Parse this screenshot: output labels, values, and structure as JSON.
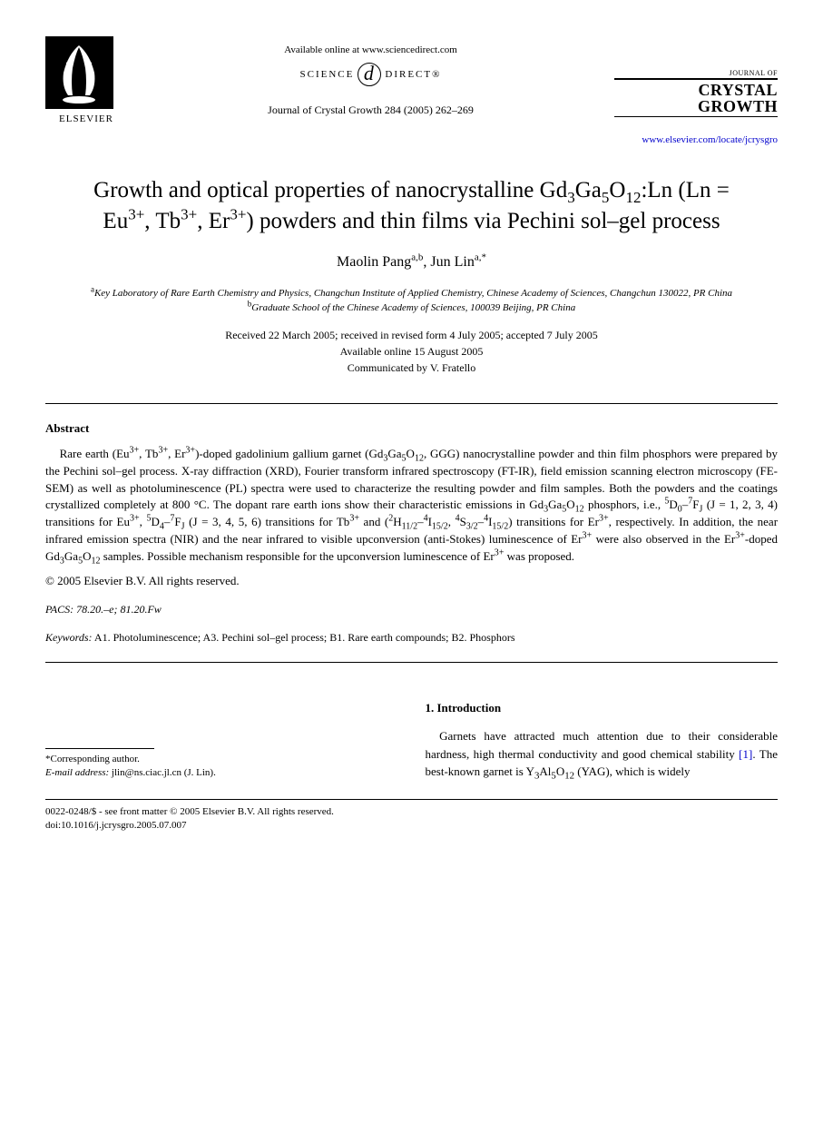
{
  "header": {
    "elsevier": "ELSEVIER",
    "available_online": "Available online at www.sciencedirect.com",
    "science": "SCIENCE",
    "direct": "DIRECT®",
    "journal_ref": "Journal of Crystal Growth 284 (2005) 262–269",
    "journal_of": "JOURNAL OF",
    "crystal": "CRYSTAL",
    "growth": "GROWTH",
    "url": "www.elsevier.com/locate/jcrysgro"
  },
  "title_html": "Growth and optical properties of nanocrystalline Gd<sub>3</sub>Ga<sub>5</sub>O<sub>12</sub>:Ln (Ln = Eu<sup>3+</sup>, Tb<sup>3+</sup>, Er<sup>3+</sup>) powders and thin films via Pechini sol–gel process",
  "authors_html": "Maolin Pang<sup>a,b</sup>, Jun Lin<sup>a,*</sup>",
  "affiliations_html": "<sup>a</sup>Key Laboratory of Rare Earth Chemistry and Physics, Changchun Institute of Applied Chemistry, Chinese Academy of Sciences, Changchun 130022, PR China<br><sup>b</sup>Graduate School of the Chinese Academy of Sciences, 100039 Beijing, PR China",
  "dates": {
    "line1": "Received 22 March 2005; received in revised form 4 July 2005; accepted 7 July 2005",
    "line2": "Available online 15 August 2005",
    "line3": "Communicated by V. Fratello"
  },
  "abstract": {
    "heading": "Abstract",
    "body_html": "Rare earth (Eu<sup>3+</sup>, Tb<sup>3+</sup>, Er<sup>3+</sup>)-doped gadolinium gallium garnet (Gd<sub>3</sub>Ga<sub>5</sub>O<sub>12</sub>, GGG) nanocrystalline powder and thin film phosphors were prepared by the Pechini sol–gel process. X-ray diffraction (XRD), Fourier transform infrared spectroscopy (FT-IR), field emission scanning electron microscopy (FE-SEM) as well as photoluminescence (PL) spectra were used to characterize the resulting powder and film samples. Both the powders and the coatings crystallized completely at 800 °C. The dopant rare earth ions show their characteristic emissions in Gd<sub>3</sub>Ga<sub>5</sub>O<sub>12</sub> phosphors, i.e., <sup>5</sup>D<sub>0</sub>–<sup>7</sup>F<sub>J</sub> (J = 1, 2, 3, 4) transitions for Eu<sup>3+</sup>, <sup>5</sup>D<sub>4</sub>–<sup>7</sup>F<sub>J</sub> (J = 3, 4, 5, 6) transitions for Tb<sup>3+</sup> and (<sup>2</sup>H<sub>11/2</sub>–<sup>4</sup>I<sub>15/2</sub>, <sup>4</sup>S<sub>3/2</sub>–<sup>4</sup>I<sub>15/2</sub>) transitions for Er<sup>3+</sup>, respectively. In addition, the near infrared emission spectra (NIR) and the near infrared to visible upconversion (anti-Stokes) luminescence of Er<sup>3+</sup> were also observed in the Er<sup>3+</sup>-doped Gd<sub>3</sub>Ga<sub>5</sub>O<sub>12</sub> samples. Possible mechanism responsible for the upconversion luminescence of Er<sup>3+</sup> was proposed.",
    "copyright": "© 2005 Elsevier B.V. All rights reserved."
  },
  "pacs": {
    "label": "PACS:",
    "value": "78.20.–e; 81.20.Fw"
  },
  "keywords": {
    "label": "Keywords:",
    "value": "A1. Photoluminescence; A3. Pechini sol–gel process; B1. Rare earth compounds; B2. Phosphors"
  },
  "footnote": {
    "corresponding": "*Corresponding author.",
    "email_label": "E-mail address:",
    "email": "jlin@ns.ciac.jl.cn (J. Lin)."
  },
  "intro": {
    "heading": "1. Introduction",
    "text_html": "Garnets have attracted much attention due to their considerable hardness, high thermal conductivity and good chemical stability <span class=\"ref-link\">[1]</span>. The best-known garnet is Y<sub>3</sub>Al<sub>5</sub>O<sub>12</sub> (YAG), which is widely"
  },
  "footer": {
    "line1": "0022-0248/$ - see front matter © 2005 Elsevier B.V. All rights reserved.",
    "line2": "doi:10.1016/j.jcrysgro.2005.07.007"
  }
}
